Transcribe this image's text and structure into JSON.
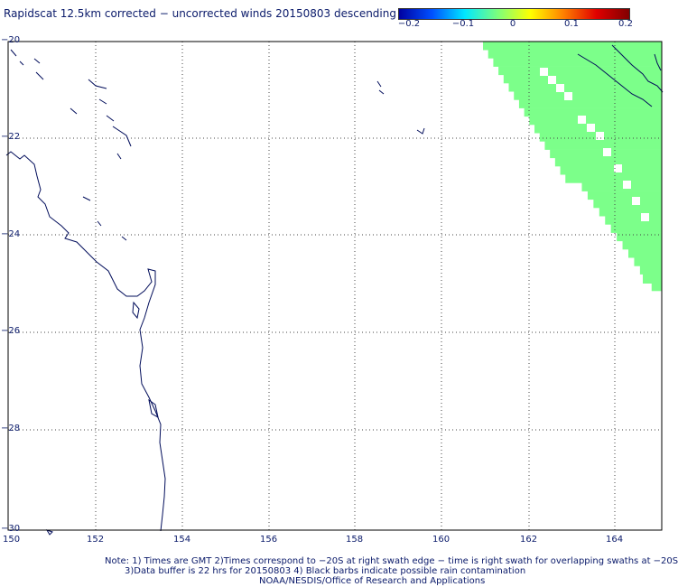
{
  "title": "Rapidscat 12.5km corrected − uncorrected winds 20150803 descending",
  "colorbar": {
    "ticks": [
      "−0.2",
      "−0.1",
      "0",
      "0.1",
      "0.2"
    ],
    "colors": [
      "#0000a0",
      "#0050ff",
      "#00e8ff",
      "#7cff7c",
      "#ffff00",
      "#ff8000",
      "#e00000",
      "#800000"
    ]
  },
  "map": {
    "lon_labels": [
      "150",
      "152",
      "154",
      "156",
      "158",
      "160",
      "162",
      "164"
    ],
    "lat_labels": [
      "−20",
      "−22",
      "−24",
      "−26",
      "−28",
      "−30"
    ],
    "lon_range": [
      150,
      164.8
    ],
    "lat_range": [
      -20,
      -30
    ],
    "grid": true,
    "coast_color": "#000c5a",
    "swath_color": "#7cff8a"
  },
  "notes": [
    "Note: 1) Times are GMT 2)Times correspond to −20S at right swath edge − time is right swath for overlapping swaths at −20S",
    "3)Data buffer is 22 hrs for 20150803 4) Black barbs indicate possible rain contamination",
    "NOAA/NESDIS/Office of Research and Applications"
  ]
}
